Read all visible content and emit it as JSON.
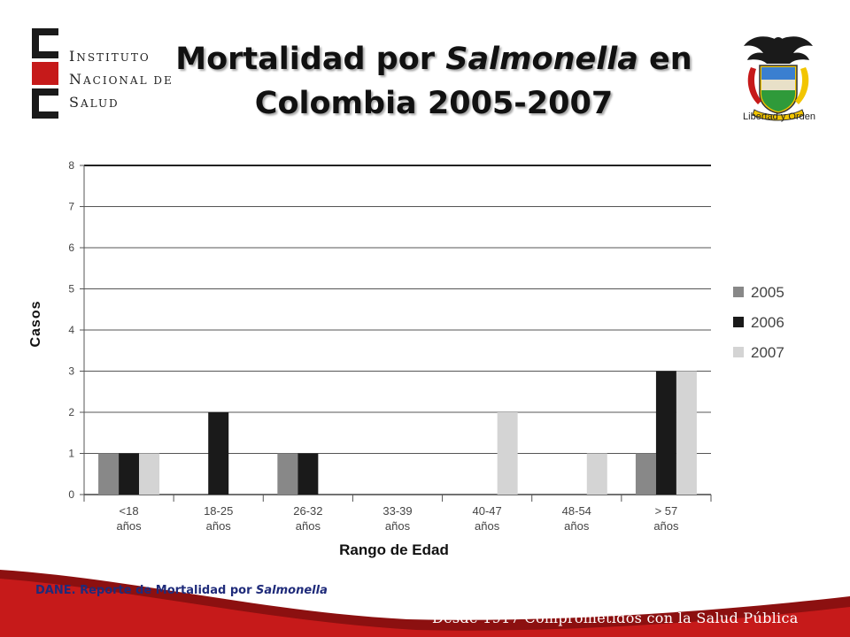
{
  "slide": {
    "title_part1": "Mortalidad por ",
    "title_italic": "Salmonella",
    "title_part2": " en",
    "title_line2": "Colombia 2005-2007",
    "source_prefix": "DANE. Reporte de Mortalidad por ",
    "source_italic": "Salmonella",
    "slogan": "Desde 1917 Comprometidos con la Salud Pública",
    "logo_ins": {
      "line1_big": "I",
      "line1_rest": "NSTITUTO",
      "line2_big": "N",
      "line2_rest": "ACIONAL DE",
      "line3_big": "S",
      "line3_rest": "ALUD"
    },
    "coat_motto": "Libertad y Orden",
    "colors": {
      "footer_red": "#c61a1a",
      "footer_dark": "#8c1010",
      "source_blue": "#1f2b7a"
    }
  },
  "chart_data": {
    "type": "bar",
    "title": "",
    "xlabel": "Rango de Edad",
    "ylabel": "Casos",
    "ylim": [
      0,
      8
    ],
    "yticks": [
      0,
      1,
      2,
      3,
      4,
      5,
      6,
      7,
      8
    ],
    "grid": true,
    "legend_position": "right",
    "categories": [
      {
        "line1": "<18",
        "line2": "años"
      },
      {
        "line1": "18-25",
        "line2": "años"
      },
      {
        "line1": "26-32",
        "line2": "años"
      },
      {
        "line1": "33-39",
        "line2": "años"
      },
      {
        "line1": "40-47",
        "line2": "años"
      },
      {
        "line1": "48-54",
        "line2": "años"
      },
      {
        "line1": "> 57",
        "line2": "años"
      }
    ],
    "series": [
      {
        "name": "2005",
        "color": "#888888",
        "values": [
          1,
          0,
          1,
          0,
          0,
          0,
          1
        ]
      },
      {
        "name": "2006",
        "color": "#1a1a1a",
        "values": [
          1,
          2,
          1,
          0,
          0,
          0,
          3
        ]
      },
      {
        "name": "2007",
        "color": "#d4d4d4",
        "values": [
          1,
          0,
          0,
          0,
          2,
          1,
          3
        ]
      }
    ]
  }
}
